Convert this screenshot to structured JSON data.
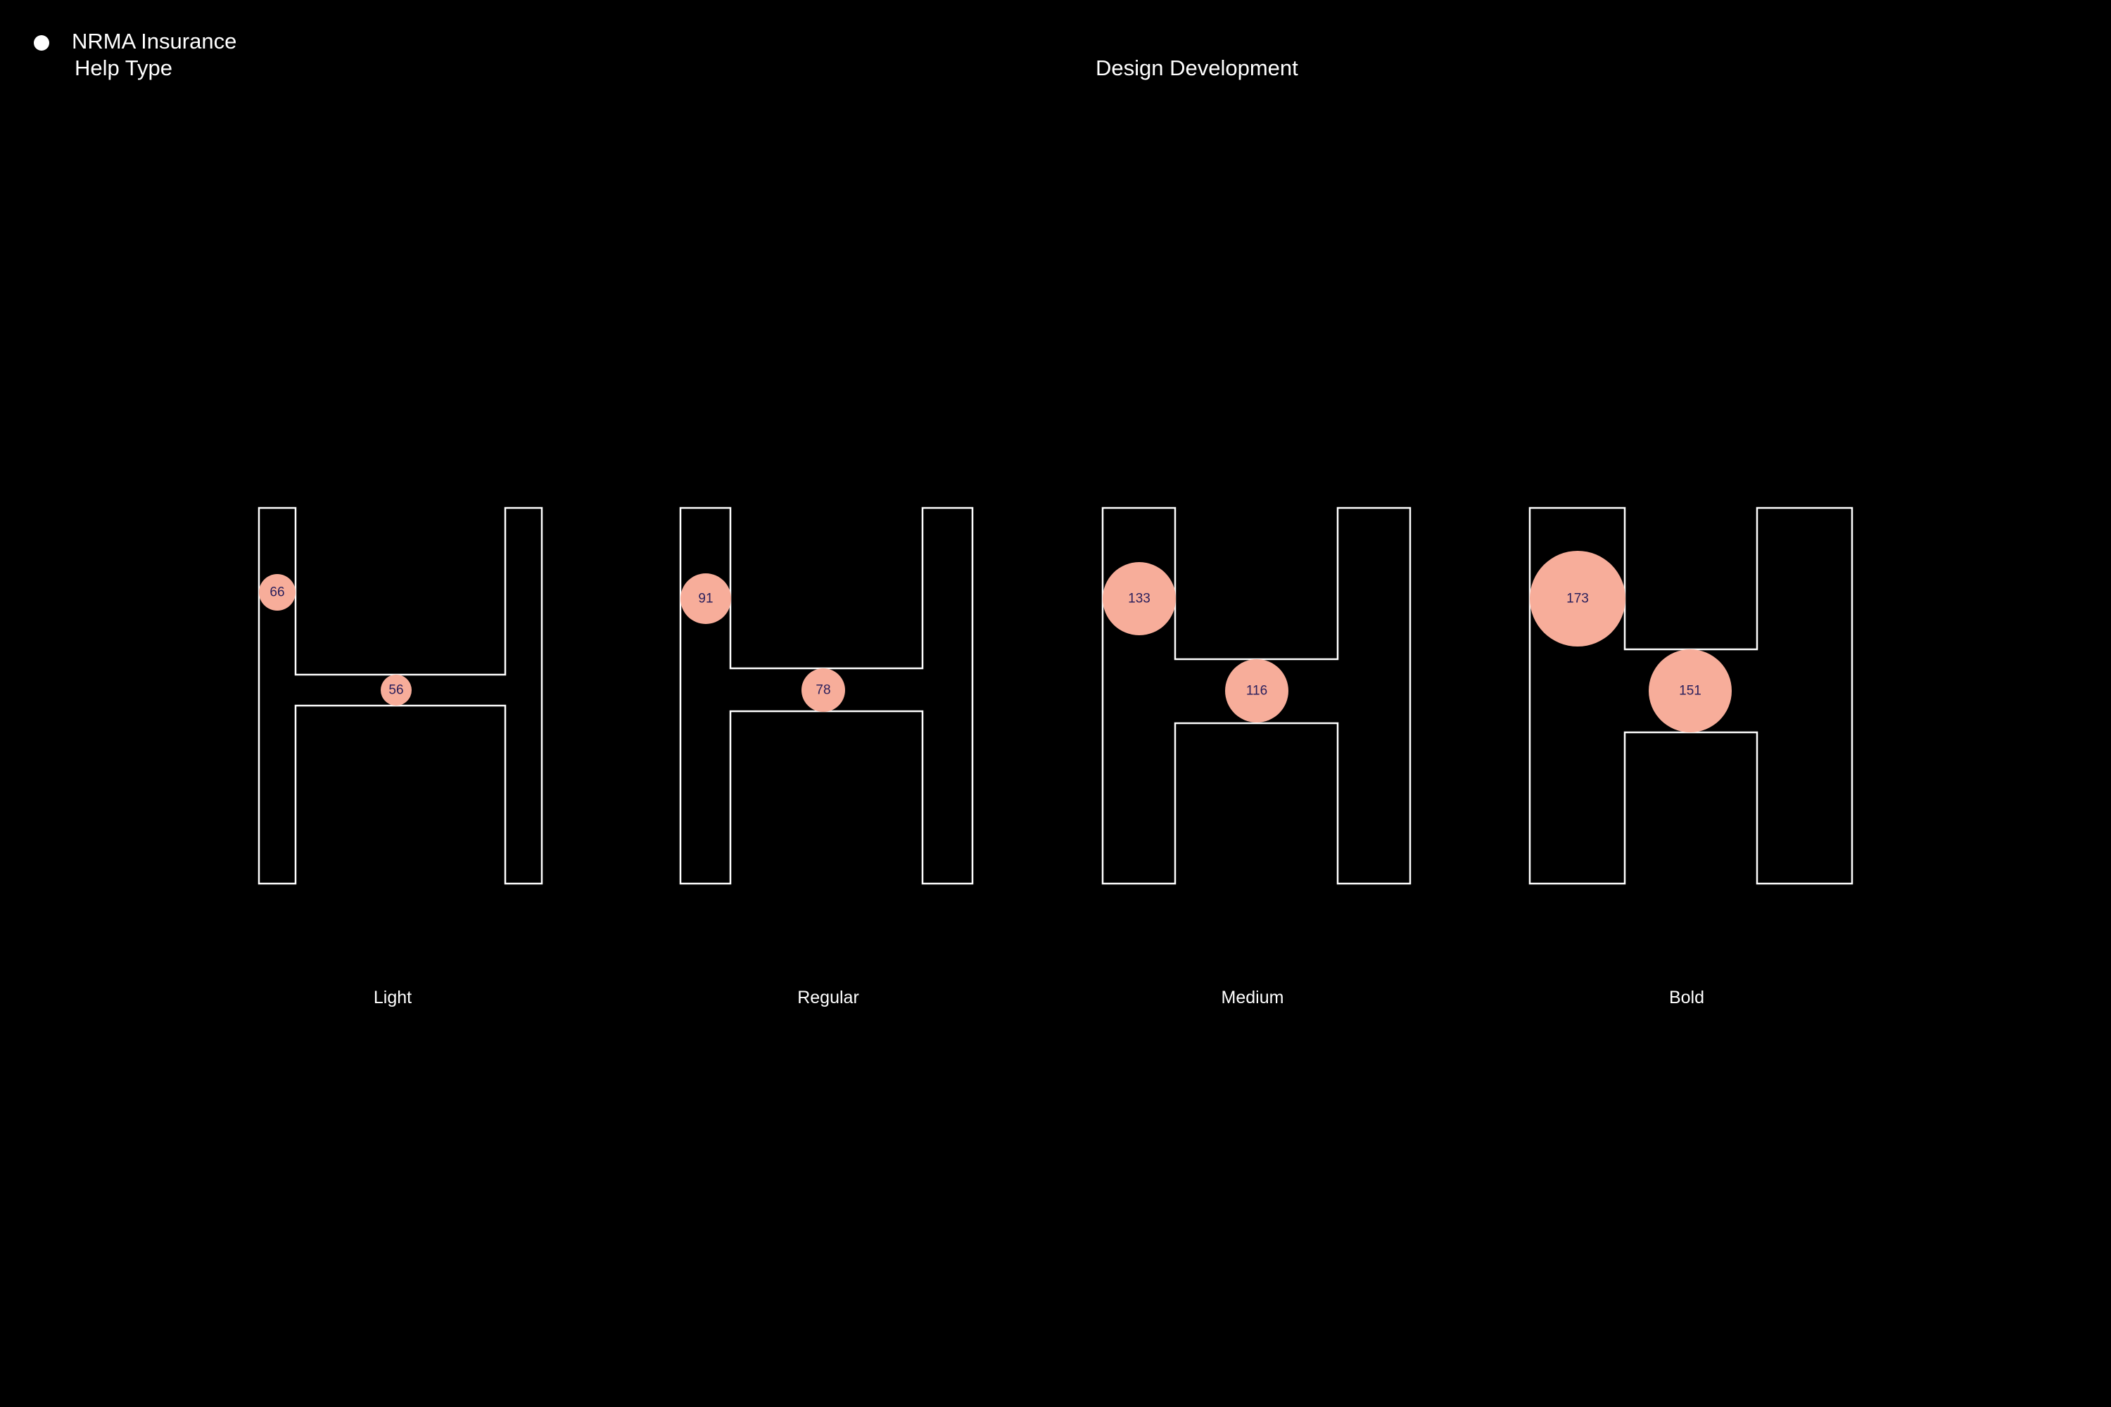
{
  "header": {
    "brand_name": "NRMA Insurance",
    "brand_subtitle": "Help Type",
    "title": "Design Development"
  },
  "colors": {
    "background": "#000000",
    "outline": "#ffffff",
    "marker": "#f7ad9a",
    "marker_text": "#2a1f5c",
    "text": "#ffffff"
  },
  "glyph_char": "H",
  "weights": [
    {
      "name": "Light",
      "stem": "66",
      "crossbar": "56"
    },
    {
      "name": "Regular",
      "stem": "91",
      "crossbar": "78"
    },
    {
      "name": "Medium",
      "stem": "133",
      "crossbar": "116"
    },
    {
      "name": "Bold",
      "stem": "173",
      "crossbar": "151"
    }
  ]
}
